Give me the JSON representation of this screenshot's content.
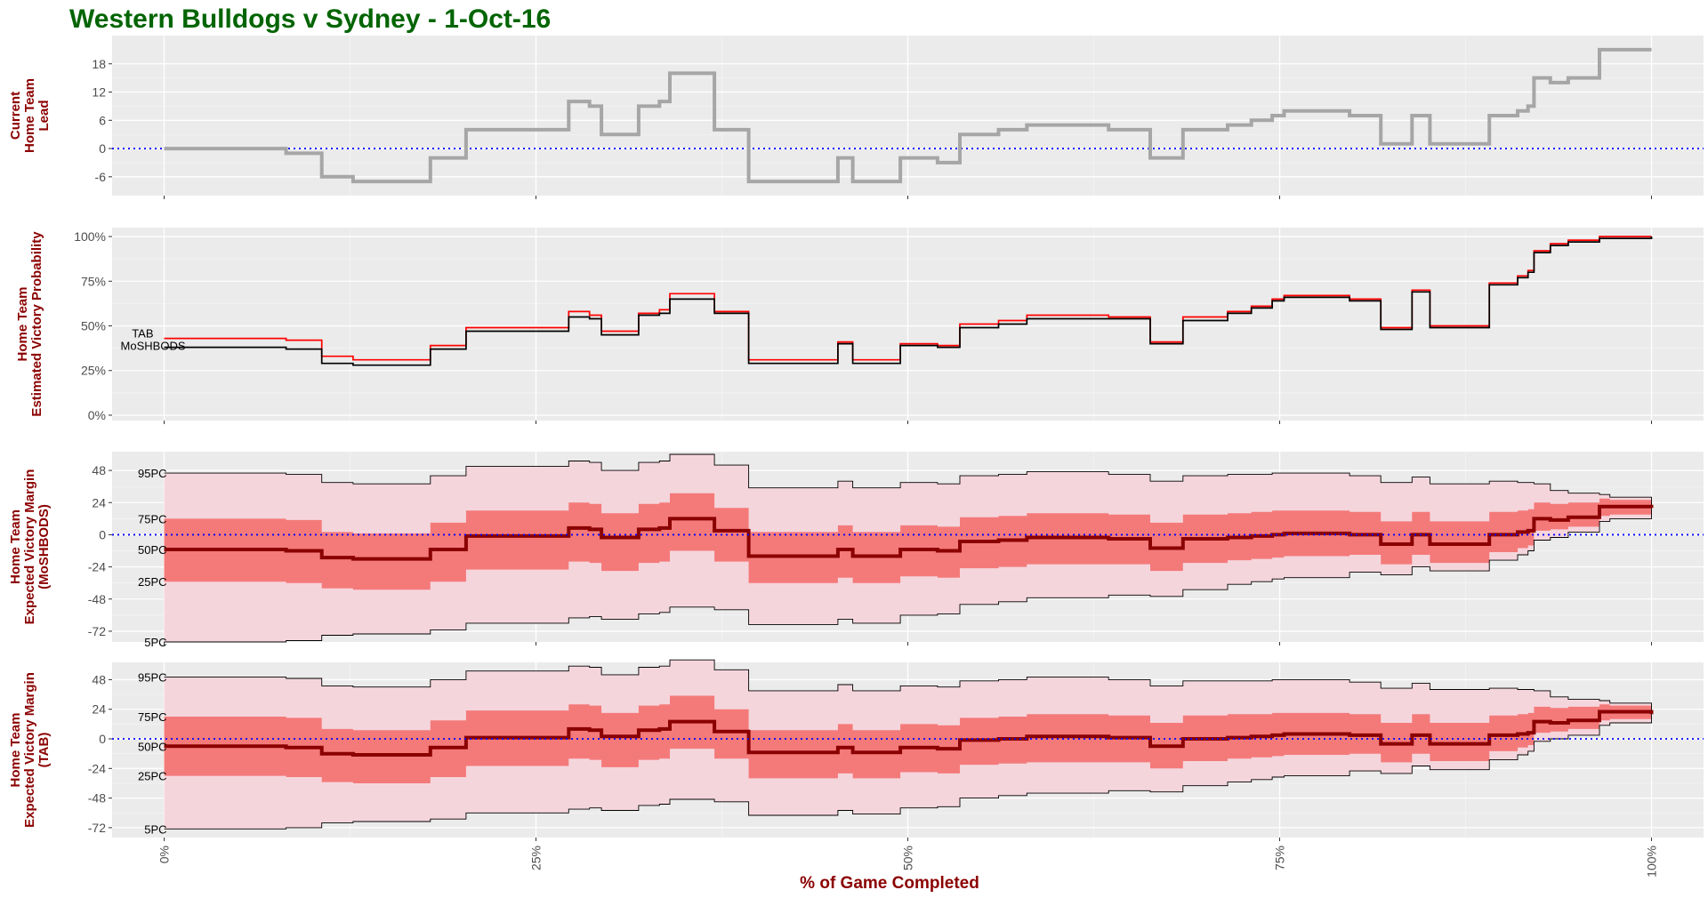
{
  "title": "Western Bulldogs v Sydney - 1-Oct-16",
  "xlabel": "% of Game Completed",
  "colors": {
    "title": "#006400",
    "axis_label": "#8b0000",
    "panel_bg": "#ebebeb",
    "lead_line": "#a6a6a6",
    "tab_line": "#ff0000",
    "moshbods_line": "#000000",
    "band_outer": "#f5d5dc",
    "band_inner": "#f47a7a",
    "median": "#8b0000",
    "zero_line": "#0000ff"
  },
  "chart_data": [
    {
      "id": "lead",
      "type": "line",
      "step": true,
      "ylabel": [
        "Current",
        "Home Team",
        "Lead"
      ],
      "ylim": [
        -10,
        24
      ],
      "yticks": [
        -6,
        0,
        6,
        12,
        18
      ],
      "ytick_labels": [
        "-6",
        "0",
        "6",
        "12",
        "18"
      ],
      "xlim": [
        -3.5,
        103.5
      ],
      "xticks": [
        0,
        25,
        50,
        75,
        100
      ],
      "zero_line": true,
      "series": [
        {
          "key": "lead",
          "x": [
            0,
            8.2,
            10.6,
            12.7,
            17.9,
            20.3,
            27.2,
            28.6,
            29.4,
            31.9,
            33.3,
            34,
            37,
            39.3,
            45.3,
            46.3,
            49.5,
            52,
            53.5,
            56.1,
            58,
            63.5,
            66.3,
            68.5,
            71.5,
            73.1,
            74.5,
            75.3,
            79.7,
            81.8,
            83.9,
            85.1,
            89.1,
            91,
            91.7,
            92.1,
            93.2,
            94.4,
            96.5,
            97.2,
            100
          ],
          "y": [
            0,
            -1,
            -6,
            -7,
            -2,
            4,
            10,
            9,
            3,
            9,
            10,
            16,
            4,
            -7,
            -2,
            -7,
            -2,
            -3,
            3,
            4,
            5,
            4,
            -2,
            4,
            5,
            6,
            7,
            8,
            7,
            1,
            7,
            1,
            7,
            8,
            9,
            15,
            14,
            15,
            21,
            21,
            21
          ]
        }
      ]
    },
    {
      "id": "probability",
      "type": "line",
      "step": true,
      "ylabel": [
        "Home Team",
        "Estimated Victory Probability"
      ],
      "ylim": [
        -3,
        105
      ],
      "yticks": [
        0,
        25,
        50,
        75,
        100
      ],
      "ytick_labels": [
        "0%",
        "25%",
        "50%",
        "75%",
        "100%"
      ],
      "xlim": [
        -3.5,
        103.5
      ],
      "xticks": [
        0,
        25,
        50,
        75,
        100
      ],
      "series": [
        {
          "key": "tab",
          "name": "TAB",
          "x": [
            0,
            8.2,
            10.6,
            12.7,
            17.9,
            20.3,
            27.2,
            28.6,
            29.4,
            31.9,
            33.3,
            34,
            37,
            39.3,
            45.3,
            46.3,
            49.5,
            52,
            53.5,
            56.1,
            58,
            63.5,
            66.3,
            68.5,
            71.5,
            73.1,
            74.5,
            75.3,
            79.7,
            81.8,
            83.9,
            85.1,
            89.1,
            91,
            91.7,
            92.1,
            93.2,
            94.4,
            96.5,
            97.2,
            100
          ],
          "y": [
            43,
            42,
            33,
            31,
            39,
            49,
            58,
            56,
            47,
            57,
            59,
            68,
            58,
            31,
            41,
            31,
            40,
            39,
            51,
            53,
            56,
            55,
            41,
            55,
            58,
            61,
            65,
            67,
            65,
            49,
            70,
            50,
            74,
            78,
            81,
            92,
            96,
            98,
            100,
            100,
            100
          ]
        },
        {
          "key": "moshbods",
          "name": "MoSHBODS",
          "x": [
            0,
            8.2,
            10.6,
            12.7,
            17.9,
            20.3,
            27.2,
            28.6,
            29.4,
            31.9,
            33.3,
            34,
            37,
            39.3,
            45.3,
            46.3,
            49.5,
            52,
            53.5,
            56.1,
            58,
            63.5,
            66.3,
            68.5,
            71.5,
            73.1,
            74.5,
            75.3,
            79.7,
            81.8,
            83.9,
            85.1,
            89.1,
            91,
            91.7,
            92.1,
            93.2,
            94.4,
            96.5,
            97.2,
            100
          ],
          "y": [
            38,
            37,
            29,
            28,
            37,
            47,
            55,
            54,
            45,
            56,
            57,
            65,
            57,
            29,
            40,
            29,
            39,
            38,
            49,
            51,
            54,
            54,
            40,
            53,
            57,
            60,
            64,
            66,
            64,
            48,
            69,
            49,
            73,
            77,
            80,
            91,
            95,
            97,
            99,
            99,
            100
          ]
        }
      ]
    },
    {
      "id": "margin_moshbods",
      "type": "area",
      "ylabel": [
        "Home Team",
        "Expected Victory Margin",
        "(MoSHBODS)"
      ],
      "ylim": [
        -80,
        62
      ],
      "yticks": [
        -72,
        -48,
        -24,
        0,
        24,
        48
      ],
      "ytick_labels": [
        "-72",
        "-48",
        "-24",
        "0",
        "24",
        "48"
      ],
      "xlim": [
        -3.5,
        103.5
      ],
      "xticks": [
        0,
        25,
        50,
        75,
        100
      ],
      "zero_line": true,
      "percentile_labels": [
        {
          "key": "p95",
          "label": "95PC"
        },
        {
          "key": "p75",
          "label": "75PC"
        },
        {
          "key": "p50",
          "label": "50PC"
        },
        {
          "key": "p25",
          "label": "25PC"
        },
        {
          "key": "p5",
          "label": "5PC"
        }
      ],
      "x": [
        0,
        8.2,
        10.6,
        12.7,
        17.9,
        20.3,
        27.2,
        28.6,
        29.4,
        31.9,
        33.3,
        34,
        37,
        39.3,
        45.3,
        46.3,
        49.5,
        52,
        53.5,
        56.1,
        58,
        63.5,
        66.3,
        68.5,
        71.5,
        73.1,
        74.5,
        75.3,
        79.7,
        81.8,
        83.9,
        85.1,
        89.1,
        91,
        91.7,
        92.1,
        93.2,
        94.4,
        96.5,
        97.2,
        100
      ],
      "p95": [
        46,
        45,
        39,
        38,
        44,
        51,
        55,
        54,
        48,
        54,
        55,
        60,
        52,
        35,
        40,
        35,
        39,
        38,
        44,
        45,
        47,
        45,
        40,
        44,
        45,
        45,
        46,
        46,
        44,
        39,
        43,
        38,
        40,
        39,
        39,
        38,
        33,
        31,
        30,
        28,
        20
      ],
      "p75": [
        12,
        11,
        2,
        1,
        9,
        18,
        24,
        23,
        16,
        23,
        24,
        31,
        20,
        2,
        7,
        2,
        7,
        6,
        13,
        14,
        16,
        15,
        9,
        15,
        16,
        17,
        18,
        18,
        17,
        10,
        17,
        10,
        17,
        18,
        19,
        24,
        23,
        24,
        27,
        26,
        20
      ],
      "p50": [
        -11,
        -12,
        -17,
        -18,
        -11,
        -1,
        5,
        4,
        -2,
        4,
        5,
        12,
        3,
        -16,
        -11,
        -16,
        -11,
        -12,
        -5,
        -4,
        -2,
        -3,
        -10,
        -3,
        -2,
        -1,
        0,
        1,
        0,
        -7,
        0,
        -7,
        0,
        2,
        3,
        12,
        11,
        13,
        21,
        21,
        20
      ],
      "p25": [
        -35,
        -36,
        -40,
        -41,
        -35,
        -26,
        -20,
        -21,
        -27,
        -21,
        -20,
        -12,
        -20,
        -36,
        -32,
        -36,
        -31,
        -32,
        -25,
        -24,
        -22,
        -22,
        -27,
        -21,
        -19,
        -18,
        -17,
        -16,
        -15,
        -22,
        -15,
        -21,
        -13,
        -10,
        -8,
        3,
        4,
        6,
        14,
        15,
        20
      ],
      "p5": [
        -80,
        -79,
        -75,
        -74,
        -71,
        -66,
        -62,
        -61,
        -63,
        -59,
        -58,
        -54,
        -56,
        -67,
        -63,
        -66,
        -60,
        -59,
        -52,
        -50,
        -47,
        -45,
        -46,
        -41,
        -37,
        -35,
        -33,
        -32,
        -28,
        -30,
        -24,
        -27,
        -19,
        -15,
        -12,
        -4,
        -2,
        2,
        10,
        12,
        20
      ]
    },
    {
      "id": "margin_tab",
      "type": "area",
      "ylabel": [
        "Home Team",
        "Expected Victory Margin",
        "(TAB)"
      ],
      "ylim": [
        -80,
        62
      ],
      "yticks": [
        -72,
        -48,
        -24,
        0,
        24,
        48
      ],
      "ytick_labels": [
        "-72",
        "-48",
        "-24",
        "0",
        "24",
        "48"
      ],
      "xlim": [
        -3.5,
        103.5
      ],
      "xticks": [
        0,
        25,
        50,
        75,
        100
      ],
      "xtick_labels": [
        "0%",
        "25%",
        "50%",
        "75%",
        "100%"
      ],
      "zero_line": true,
      "percentile_labels": [
        {
          "key": "p95",
          "label": "95PC"
        },
        {
          "key": "p75",
          "label": "75PC"
        },
        {
          "key": "p50",
          "label": "50PC"
        },
        {
          "key": "p25",
          "label": "25PC"
        },
        {
          "key": "p5",
          "label": "5PC"
        }
      ],
      "x": [
        0,
        8.2,
        10.6,
        12.7,
        17.9,
        20.3,
        27.2,
        28.6,
        29.4,
        31.9,
        33.3,
        34,
        37,
        39.3,
        45.3,
        46.3,
        49.5,
        52,
        53.5,
        56.1,
        58,
        63.5,
        66.3,
        68.5,
        71.5,
        73.1,
        74.5,
        75.3,
        79.7,
        81.8,
        83.9,
        85.1,
        89.1,
        91,
        91.7,
        92.1,
        93.2,
        94.4,
        96.5,
        97.2,
        100
      ],
      "p95": [
        50,
        49,
        43,
        42,
        48,
        55,
        59,
        58,
        52,
        58,
        59,
        64,
        56,
        39,
        44,
        39,
        43,
        42,
        47,
        48,
        50,
        48,
        43,
        47,
        47,
        47,
        48,
        48,
        46,
        41,
        45,
        40,
        41,
        40,
        40,
        39,
        34,
        32,
        31,
        29,
        20
      ],
      "p75": [
        18,
        17,
        8,
        7,
        15,
        23,
        28,
        27,
        21,
        27,
        28,
        35,
        24,
        7,
        12,
        7,
        12,
        11,
        17,
        18,
        20,
        19,
        13,
        19,
        20,
        20,
        21,
        21,
        20,
        13,
        20,
        13,
        19,
        20,
        21,
        26,
        25,
        26,
        28,
        27,
        20
      ],
      "p50": [
        -6,
        -7,
        -12,
        -13,
        -7,
        1,
        8,
        7,
        2,
        7,
        8,
        14,
        6,
        -11,
        -7,
        -11,
        -7,
        -8,
        -1,
        0,
        2,
        1,
        -6,
        0,
        1,
        2,
        3,
        4,
        3,
        -4,
        3,
        -4,
        3,
        4,
        5,
        14,
        13,
        15,
        22,
        22,
        20
      ],
      "p25": [
        -30,
        -31,
        -35,
        -36,
        -31,
        -22,
        -16,
        -17,
        -23,
        -17,
        -16,
        -8,
        -16,
        -32,
        -28,
        -32,
        -27,
        -28,
        -21,
        -20,
        -19,
        -19,
        -24,
        -18,
        -16,
        -15,
        -14,
        -13,
        -12,
        -19,
        -12,
        -18,
        -10,
        -7,
        -5,
        5,
        6,
        8,
        15,
        16,
        20
      ],
      "p5": [
        -73,
        -72,
        -68,
        -67,
        -65,
        -60,
        -57,
        -56,
        -58,
        -54,
        -53,
        -49,
        -51,
        -62,
        -58,
        -61,
        -56,
        -55,
        -48,
        -46,
        -44,
        -42,
        -43,
        -38,
        -35,
        -33,
        -31,
        -30,
        -26,
        -28,
        -22,
        -25,
        -17,
        -13,
        -10,
        -2,
        0,
        3,
        11,
        13,
        20
      ]
    }
  ]
}
